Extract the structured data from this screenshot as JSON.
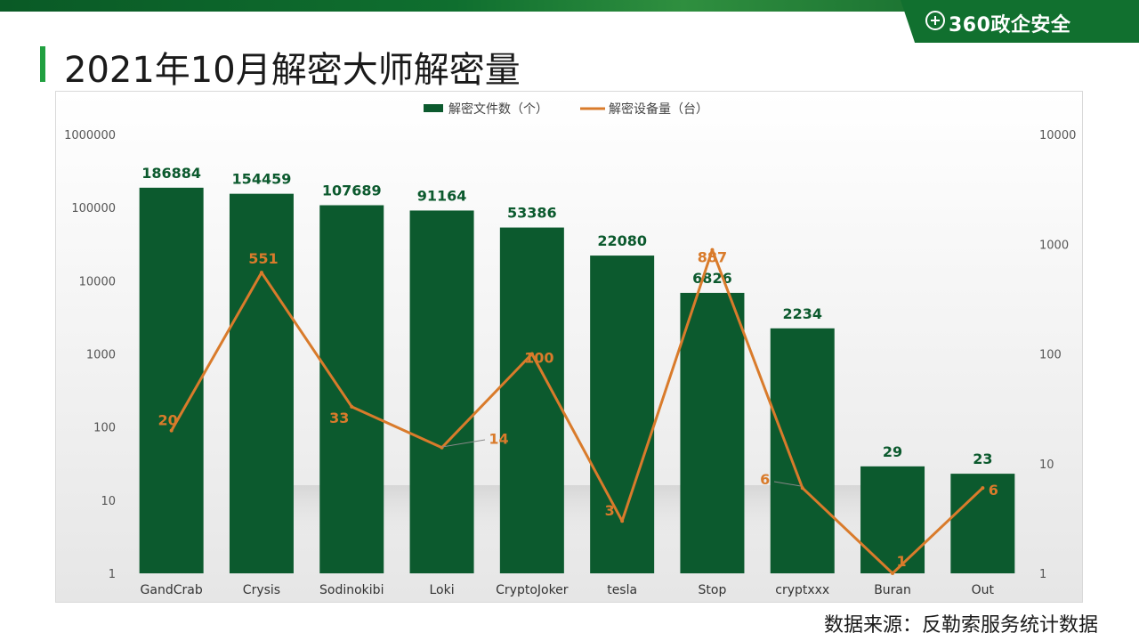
{
  "header": {
    "title": "2021年10月解密大师解密量",
    "logo_text": "360政企安全",
    "source": "数据来源：反勒索服务统计数据"
  },
  "colors": {
    "bar": "#0c5a2e",
    "line": "#d97b2b",
    "bar_label": "#0c5a2e",
    "line_label": "#d97b2b"
  },
  "chart_data": {
    "type": "bar",
    "log_scale": true,
    "categories": [
      "GandCrab",
      "Crysis",
      "Sodinokibi",
      "Loki",
      "CryptoJoker",
      "tesla",
      "Stop",
      "cryptxxx",
      "Buran",
      "Out"
    ],
    "series": [
      {
        "name": "解密文件数（个）",
        "type": "bar",
        "axis": "left",
        "values": [
          186884,
          154459,
          107689,
          91164,
          53386,
          22080,
          6826,
          2234,
          29,
          23
        ]
      },
      {
        "name": "解密设备量（台）",
        "type": "line",
        "axis": "right",
        "values": [
          20,
          551,
          33,
          14,
          100,
          3,
          887,
          6,
          1,
          6
        ]
      }
    ],
    "y_left": {
      "ticks": [
        "1",
        "10",
        "100",
        "1000",
        "10000",
        "100000",
        "1000000"
      ],
      "range": [
        1,
        1000000
      ]
    },
    "y_right": {
      "ticks": [
        "1",
        "10",
        "100",
        "1000",
        "10000"
      ],
      "range": [
        1,
        10000
      ]
    },
    "legend": "top-center",
    "grid": false
  }
}
